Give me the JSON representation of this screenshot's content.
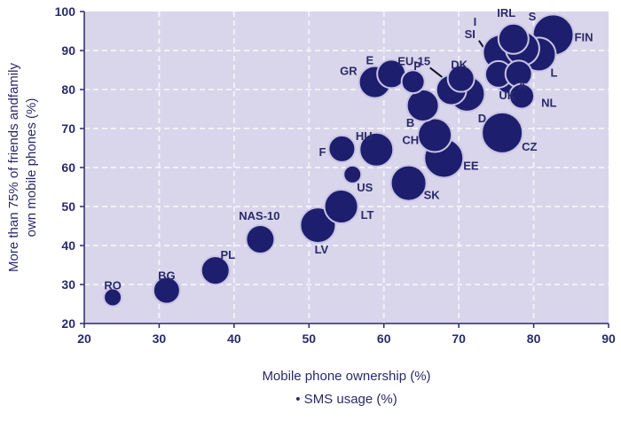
{
  "colors": {
    "plot_bg": "#d9d5ea",
    "grid": "#f2f0fa",
    "bubble_fill": "#1e1e6e",
    "bubble_stroke": "#c8c4e4",
    "text": "#2a2a6b"
  },
  "chart_data": {
    "type": "scatter",
    "title": "",
    "xlabel": "Mobile phone ownership (%)",
    "ylabel_lines": [
      "More than 75% of friends andfamily",
      "own mobile phones (%)"
    ],
    "size_legend": "• SMS usage (%)",
    "xlim": [
      20,
      90
    ],
    "ylim": [
      20,
      100
    ],
    "xticks": [
      20,
      30,
      40,
      50,
      60,
      70,
      80,
      90
    ],
    "yticks": [
      20,
      30,
      40,
      50,
      60,
      70,
      80,
      90,
      100
    ],
    "grid": true,
    "points": [
      {
        "label": "RO",
        "x": 23.8,
        "y": 26.7,
        "size": 10
      },
      {
        "label": "BG",
        "x": 31.0,
        "y": 28.5,
        "size": 15
      },
      {
        "label": "PL",
        "x": 37.5,
        "y": 33.6,
        "size": 16
      },
      {
        "label": "NAS-10",
        "x": 43.5,
        "y": 41.6,
        "size": 16
      },
      {
        "label": "LV",
        "x": 51.2,
        "y": 45.2,
        "size": 20
      },
      {
        "label": "LT",
        "x": 54.3,
        "y": 50.0,
        "size": 19
      },
      {
        "label": "US",
        "x": 55.8,
        "y": 58.2,
        "size": 10
      },
      {
        "label": "F",
        "x": 54.4,
        "y": 64.8,
        "size": 15
      },
      {
        "label": "HU",
        "x": 59.0,
        "y": 64.6,
        "size": 19
      },
      {
        "label": "SK",
        "x": 63.3,
        "y": 56.0,
        "size": 20
      },
      {
        "label": "CH",
        "x": 66.8,
        "y": 68.3,
        "size": 19
      },
      {
        "label": "EE",
        "x": 68.0,
        "y": 62.4,
        "size": 22
      },
      {
        "label": "CZ",
        "x": 75.8,
        "y": 68.9,
        "size": 23
      },
      {
        "label": "B",
        "x": 65.2,
        "y": 75.9,
        "size": 18
      },
      {
        "label": "GR",
        "x": 58.8,
        "y": 81.9,
        "size": 18
      },
      {
        "label": "E",
        "x": 61.0,
        "y": 84.0,
        "size": 16
      },
      {
        "label": "P",
        "x": 63.9,
        "y": 82.0,
        "size": 13
      },
      {
        "label": "EU-15",
        "x": 69.0,
        "y": 79.9,
        "size": 17
      },
      {
        "label": "DK",
        "x": 70.3,
        "y": 82.8,
        "size": 15
      },
      {
        "label": "D",
        "x": 71.1,
        "y": 78.9,
        "size": 20
      },
      {
        "label": "UK",
        "x": 76.7,
        "y": 82.3,
        "size": 15
      },
      {
        "label": "NL",
        "x": 78.4,
        "y": 78.3,
        "size": 14
      },
      {
        "label": "SI",
        "x": 75.3,
        "y": 83.9,
        "size": 15
      },
      {
        "label": "A",
        "x": 78.0,
        "y": 84.0,
        "size": 15
      },
      {
        "label": "I",
        "x": 75.6,
        "y": 89.5,
        "size": 20
      },
      {
        "label": "IRL",
        "x": 77.3,
        "y": 93.0,
        "size": 17
      },
      {
        "label": "L",
        "x": 80.7,
        "y": 89.0,
        "size": 19
      },
      {
        "label": "S",
        "x": 78.5,
        "y": 90.5,
        "size": 19
      },
      {
        "label": "FIN",
        "x": 82.6,
        "y": 94.0,
        "size": 23
      }
    ]
  }
}
